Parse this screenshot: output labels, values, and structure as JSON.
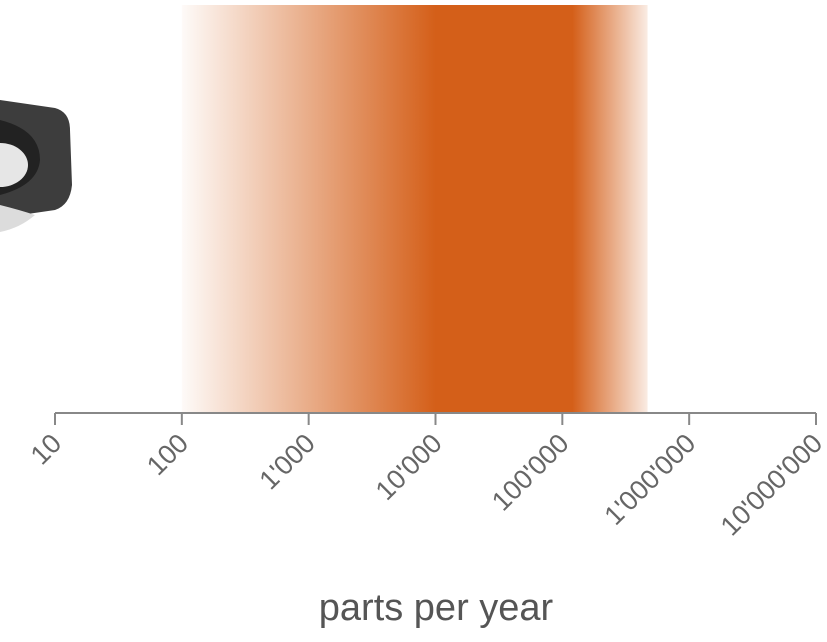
{
  "chart_data": {
    "type": "range",
    "xlabel": "parts per year",
    "log_x": true,
    "xlim": [
      10,
      10000000
    ],
    "xticks": [
      10,
      100,
      {
        "value": 1000,
        "label": "1'000"
      },
      {
        "value": 10000,
        "label": "10'000"
      },
      {
        "value": 100000,
        "label": "100'000"
      },
      {
        "value": 1000000,
        "label": "1'000'000"
      },
      {
        "value": 10000000,
        "label": "10'000'000"
      }
    ],
    "band": {
      "start": 100,
      "peak_start": 10000,
      "peak_end": 120000,
      "end": 470000,
      "color": "#d45f19"
    }
  }
}
